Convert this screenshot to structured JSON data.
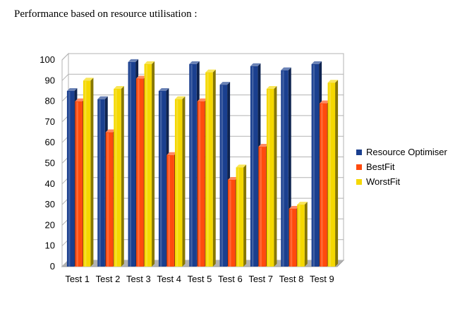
{
  "heading": "Performance based on resource utilisation :",
  "chart_data": {
    "type": "bar",
    "title": "",
    "xlabel": "",
    "ylabel": "",
    "ylim": [
      0,
      100
    ],
    "yticks": [
      "0",
      "10",
      "20",
      "30",
      "40",
      "50",
      "60",
      "70",
      "80",
      "90",
      "100"
    ],
    "grid": true,
    "legend_position": "right",
    "categories": [
      "Test 1",
      "Test 2",
      "Test 3",
      "Test 4",
      "Test 5",
      "Test 6",
      "Test 7",
      "Test 8",
      "Test 9"
    ],
    "series": [
      {
        "name": "Resource Optimiser",
        "color": "#1a3f8f",
        "values": [
          85,
          81,
          99,
          85,
          98,
          88,
          97,
          95,
          98
        ]
      },
      {
        "name": "BestFit",
        "color": "#ff4a0d",
        "values": [
          80,
          65,
          91,
          54,
          80,
          42,
          58,
          28,
          79
        ]
      },
      {
        "name": "WorstFit",
        "color": "#f5d800",
        "values": [
          90,
          86,
          98,
          81,
          94,
          48,
          86,
          30,
          89
        ]
      }
    ]
  }
}
